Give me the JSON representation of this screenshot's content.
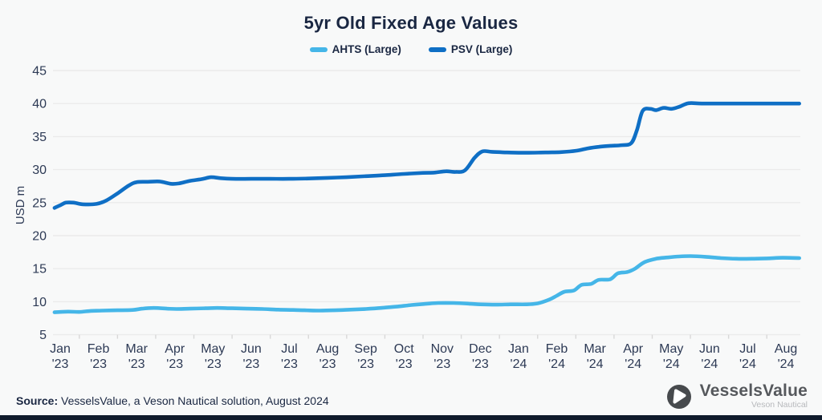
{
  "title": "5yr Old Fixed Age Values",
  "legend": [
    {
      "label": "AHTS (Large)",
      "color": "#45b6e8"
    },
    {
      "label": "PSV (Large)",
      "color": "#0f6fc5"
    }
  ],
  "footer": {
    "source_label": "Source:",
    "source_text": " VesselsValue, a Veson Nautical solution, August 2024"
  },
  "logo": {
    "name": "VesselsValue",
    "subtitle": "Veson Nautical"
  },
  "colors": {
    "title": "#1a2742",
    "axis_text": "#2d3a55",
    "gridline": "#ebebeb",
    "tick": "#d8d8d8",
    "background": "#f8f9f9",
    "bottom_bar": "#101b2c"
  },
  "chart_data": {
    "type": "line",
    "title": "5yr Old Fixed Age Values",
    "ylabel": "USD m",
    "xlabel": "",
    "ylim": [
      5,
      45
    ],
    "yticks": [
      45,
      40,
      35,
      30,
      25,
      20,
      15,
      10,
      5
    ],
    "grid": true,
    "legend_position": "top",
    "x_tick_labels": [
      [
        "Jan",
        "'23"
      ],
      [
        "Feb",
        "'23"
      ],
      [
        "Mar",
        "'23"
      ],
      [
        "Apr",
        "'23"
      ],
      [
        "May",
        "'23"
      ],
      [
        "Jun",
        "'23"
      ],
      [
        "Jul",
        "'23"
      ],
      [
        "Aug",
        "'23"
      ],
      [
        "Sep",
        "'23"
      ],
      [
        "Oct",
        "'23"
      ],
      [
        "Nov",
        "'23"
      ],
      [
        "Dec",
        "'23"
      ],
      [
        "Jan",
        "'24"
      ],
      [
        "Feb",
        "'24"
      ],
      [
        "Mar",
        "'24"
      ],
      [
        "Apr",
        "'24"
      ],
      [
        "May",
        "'24"
      ],
      [
        "Jun",
        "'24"
      ],
      [
        "Jul",
        "'24"
      ],
      [
        "Aug",
        "'24"
      ]
    ],
    "series": [
      {
        "name": "AHTS (Large)",
        "color": "#45b6e8",
        "points": [
          [
            -0.15,
            8.4
          ],
          [
            0.2,
            8.5
          ],
          [
            0.5,
            8.45
          ],
          [
            0.8,
            8.6
          ],
          [
            1.1,
            8.65
          ],
          [
            1.5,
            8.7
          ],
          [
            1.9,
            8.75
          ],
          [
            2.15,
            8.95
          ],
          [
            2.45,
            9.05
          ],
          [
            2.8,
            8.95
          ],
          [
            3.05,
            8.9
          ],
          [
            3.4,
            8.95
          ],
          [
            3.8,
            9.0
          ],
          [
            4.1,
            9.05
          ],
          [
            4.5,
            9.0
          ],
          [
            4.9,
            8.95
          ],
          [
            5.3,
            8.9
          ],
          [
            5.7,
            8.8
          ],
          [
            6.1,
            8.75
          ],
          [
            6.4,
            8.7
          ],
          [
            6.8,
            8.65
          ],
          [
            7.2,
            8.7
          ],
          [
            7.6,
            8.8
          ],
          [
            8.0,
            8.9
          ],
          [
            8.4,
            9.05
          ],
          [
            8.8,
            9.25
          ],
          [
            9.2,
            9.5
          ],
          [
            9.6,
            9.7
          ],
          [
            9.9,
            9.8
          ],
          [
            10.3,
            9.8
          ],
          [
            10.7,
            9.7
          ],
          [
            11.0,
            9.6
          ],
          [
            11.4,
            9.55
          ],
          [
            11.8,
            9.6
          ],
          [
            12.2,
            9.6
          ],
          [
            12.5,
            9.75
          ],
          [
            12.8,
            10.3
          ],
          [
            13.0,
            10.9
          ],
          [
            13.2,
            11.5
          ],
          [
            13.45,
            11.7
          ],
          [
            13.65,
            12.55
          ],
          [
            13.9,
            12.7
          ],
          [
            14.1,
            13.3
          ],
          [
            14.4,
            13.4
          ],
          [
            14.6,
            14.3
          ],
          [
            14.85,
            14.5
          ],
          [
            15.05,
            15.0
          ],
          [
            15.3,
            16.0
          ],
          [
            15.6,
            16.5
          ],
          [
            15.9,
            16.7
          ],
          [
            16.2,
            16.85
          ],
          [
            16.5,
            16.9
          ],
          [
            16.9,
            16.8
          ],
          [
            17.3,
            16.6
          ],
          [
            17.7,
            16.5
          ],
          [
            18.1,
            16.5
          ],
          [
            18.5,
            16.55
          ],
          [
            18.9,
            16.65
          ],
          [
            19.35,
            16.6
          ]
        ]
      },
      {
        "name": "PSV (Large)",
        "color": "#0f6fc5",
        "points": [
          [
            -0.15,
            24.2
          ],
          [
            0.0,
            24.6
          ],
          [
            0.15,
            25.0
          ],
          [
            0.35,
            25.0
          ],
          [
            0.6,
            24.75
          ],
          [
            0.95,
            24.8
          ],
          [
            1.2,
            25.3
          ],
          [
            1.5,
            26.4
          ],
          [
            1.8,
            27.6
          ],
          [
            2.0,
            28.1
          ],
          [
            2.3,
            28.15
          ],
          [
            2.6,
            28.2
          ],
          [
            2.9,
            27.85
          ],
          [
            3.1,
            27.9
          ],
          [
            3.4,
            28.3
          ],
          [
            3.7,
            28.55
          ],
          [
            3.95,
            28.85
          ],
          [
            4.2,
            28.7
          ],
          [
            4.5,
            28.6
          ],
          [
            5.0,
            28.6
          ],
          [
            5.5,
            28.6
          ],
          [
            6.0,
            28.6
          ],
          [
            6.5,
            28.65
          ],
          [
            7.0,
            28.75
          ],
          [
            7.5,
            28.85
          ],
          [
            8.0,
            29.0
          ],
          [
            8.5,
            29.15
          ],
          [
            9.0,
            29.35
          ],
          [
            9.5,
            29.5
          ],
          [
            9.8,
            29.55
          ],
          [
            10.1,
            29.75
          ],
          [
            10.35,
            29.65
          ],
          [
            10.6,
            29.9
          ],
          [
            10.85,
            31.8
          ],
          [
            11.05,
            32.75
          ],
          [
            11.3,
            32.7
          ],
          [
            11.7,
            32.6
          ],
          [
            12.2,
            32.55
          ],
          [
            12.7,
            32.6
          ],
          [
            13.1,
            32.65
          ],
          [
            13.5,
            32.85
          ],
          [
            13.8,
            33.2
          ],
          [
            14.1,
            33.45
          ],
          [
            14.4,
            33.6
          ],
          [
            14.7,
            33.7
          ],
          [
            14.95,
            34.0
          ],
          [
            15.1,
            36.0
          ],
          [
            15.25,
            38.9
          ],
          [
            15.45,
            39.2
          ],
          [
            15.6,
            39.0
          ],
          [
            15.8,
            39.35
          ],
          [
            16.0,
            39.2
          ],
          [
            16.2,
            39.5
          ],
          [
            16.45,
            40.05
          ],
          [
            16.8,
            40.0
          ],
          [
            17.5,
            40.0
          ],
          [
            18.2,
            40.0
          ],
          [
            18.9,
            40.0
          ],
          [
            19.35,
            40.0
          ]
        ]
      }
    ]
  }
}
